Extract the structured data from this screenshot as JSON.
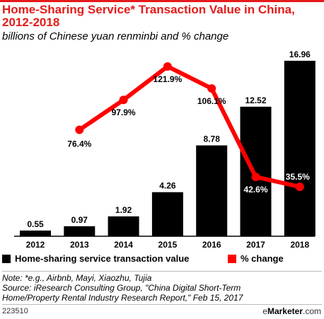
{
  "header": {
    "title": "Home-Sharing Service* Transaction Value in China, 2012-2018",
    "subtitle": "billions of Chinese yuan renminbi and % change"
  },
  "legend": {
    "bar_label": "Home-sharing service transaction value",
    "line_label": "% change"
  },
  "notes": {
    "note": "Note: *e.g., Airbnb, Mayi, Xiaozhu, Tujia",
    "source_line1": "Source: iResearch Consulting Group, \"China Digital Short-Term",
    "source_line2": "Home/Property Rental Industry Research Report,\" Feb 15, 2017"
  },
  "footer": {
    "chart_id": "223510",
    "brand_prefix": "e",
    "brand_name": "Marketer",
    "brand_suffix": ".com"
  },
  "colors": {
    "bar": "#000000",
    "line": "#ff0000",
    "title": "#e51a1a"
  },
  "chart_data": {
    "type": "bar",
    "title": "Home-Sharing Service* Transaction Value in China, 2012-2018",
    "subtitle": "billions of Chinese yuan renminbi and % change",
    "categories": [
      "2012",
      "2013",
      "2014",
      "2015",
      "2016",
      "2017",
      "2018"
    ],
    "series": [
      {
        "name": "Home-sharing service transaction value",
        "type": "bar",
        "values": [
          0.55,
          0.97,
          1.92,
          4.26,
          8.78,
          12.52,
          16.96
        ],
        "labels": [
          "0.55",
          "0.97",
          "1.92",
          "4.26",
          "8.78",
          "12.52",
          "16.96"
        ]
      },
      {
        "name": "% change",
        "type": "line",
        "values": [
          null,
          76.4,
          97.9,
          121.9,
          106.1,
          42.6,
          35.5
        ],
        "labels": [
          "",
          "76.4%",
          "97.9%",
          "121.9%",
          "106.1%",
          "42.6%",
          "35.5%"
        ]
      }
    ],
    "bar_ylim": [
      0,
      17.5
    ],
    "line_ylim": [
      0,
      130
    ],
    "grid": false,
    "legend_position": "bottom"
  }
}
